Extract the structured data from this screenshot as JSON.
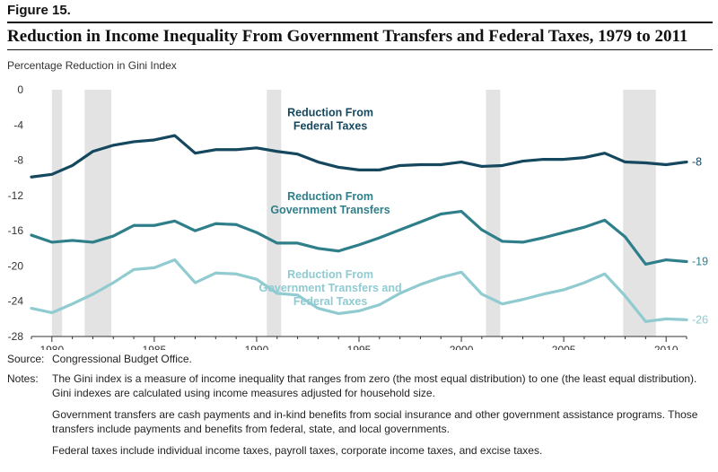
{
  "figure": {
    "label": "Figure 15."
  },
  "chart_data": {
    "type": "line",
    "title": "Reduction in Income Inequality From Government Transfers and Federal Taxes, 1979 to 2011",
    "ylabel": "Percentage Reduction in Gini Index",
    "xlabel": "",
    "xlim": [
      1979,
      2011
    ],
    "ylim": [
      -28,
      0
    ],
    "yticks": [
      0,
      -4,
      -8,
      -12,
      -16,
      -20,
      -24,
      -28
    ],
    "xticks": [
      1980,
      1985,
      1990,
      1995,
      2000,
      2005,
      2010
    ],
    "grid": false,
    "recession_shading": [
      [
        1980.0,
        1980.5
      ],
      [
        1981.6,
        1982.9
      ],
      [
        1990.5,
        1991.2
      ],
      [
        2001.2,
        2001.9
      ],
      [
        2007.9,
        2009.5
      ]
    ],
    "x": [
      1979,
      1980,
      1981,
      1982,
      1983,
      1984,
      1985,
      1986,
      1987,
      1988,
      1989,
      1990,
      1991,
      1992,
      1993,
      1994,
      1995,
      1996,
      1997,
      1998,
      1999,
      2000,
      2001,
      2002,
      2003,
      2004,
      2005,
      2006,
      2007,
      2008,
      2009,
      2010,
      2011
    ],
    "series": [
      {
        "name": "Reduction From Federal Taxes",
        "label_lines": [
          "Reduction From",
          "Federal Taxes"
        ],
        "color": "#15485e",
        "end_label": "-8",
        "values": [
          -9.9,
          -9.6,
          -8.6,
          -7.0,
          -6.3,
          -5.9,
          -5.7,
          -5.2,
          -7.2,
          -6.8,
          -6.8,
          -6.6,
          -7.0,
          -7.3,
          -8.2,
          -8.8,
          -9.1,
          -9.1,
          -8.6,
          -8.5,
          -8.5,
          -8.2,
          -8.7,
          -8.6,
          -8.1,
          -7.9,
          -7.9,
          -7.7,
          -7.2,
          -8.2,
          -8.3,
          -8.5,
          -8.2
        ]
      },
      {
        "name": "Reduction From Government Transfers",
        "label_lines": [
          "Reduction From",
          "Government Transfers"
        ],
        "color": "#2f7f8a",
        "end_label": "-19",
        "values": [
          -16.5,
          -17.3,
          -17.1,
          -17.3,
          -16.6,
          -15.4,
          -15.4,
          -14.9,
          -16.0,
          -15.2,
          -15.3,
          -16.2,
          -17.4,
          -17.4,
          -18.0,
          -18.3,
          -17.6,
          -16.8,
          -15.9,
          -15.0,
          -14.1,
          -13.8,
          -15.9,
          -17.2,
          -17.3,
          -16.8,
          -16.2,
          -15.6,
          -14.8,
          -16.7,
          -19.8,
          -19.3,
          -19.5
        ]
      },
      {
        "name": "Reduction From Government Transfers and Federal Taxes",
        "label_lines": [
          "Reduction From",
          "Government Transfers and",
          "Federal Taxes"
        ],
        "color": "#8fcbd0",
        "end_label": "-26",
        "values": [
          -24.8,
          -25.3,
          -24.3,
          -23.2,
          -21.9,
          -20.4,
          -20.2,
          -19.3,
          -21.9,
          -20.8,
          -20.9,
          -21.5,
          -23.1,
          -23.3,
          -24.8,
          -25.4,
          -25.1,
          -24.4,
          -23.1,
          -22.1,
          -21.3,
          -20.7,
          -23.2,
          -24.3,
          -23.8,
          -23.2,
          -22.7,
          -21.9,
          -20.9,
          -23.4,
          -26.3,
          -26.0,
          -26.1
        ]
      }
    ]
  },
  "notes": {
    "source_label": "Source:",
    "source_text": "Congressional Budget Office.",
    "notes_label": "Notes:",
    "note1": "The Gini index is a measure of income inequality that ranges from zero (the most equal distribution) to one (the least equal distribution). Gini indexes are calculated using income measures adjusted for household size.",
    "note2": "Government transfers are cash payments and in-kind benefits from social insurance and other government assistance programs. Those transfers include payments and benefits from federal, state, and local governments.",
    "note3": "Federal taxes include individual income taxes, payroll taxes, corporate income taxes, and excise taxes."
  }
}
